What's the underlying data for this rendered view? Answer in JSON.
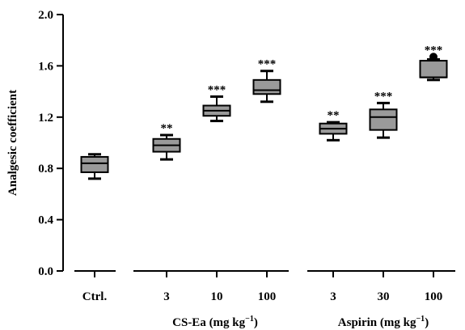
{
  "chart_data": {
    "type": "box",
    "ylabel": "Analgesic coefficient",
    "ylim": [
      0.0,
      2.0
    ],
    "yticks": [
      "0.0",
      "0.4",
      "0.8",
      "1.2",
      "1.6",
      "2.0"
    ],
    "groups": [
      {
        "label_main": "",
        "label_unit": "",
        "label_sup": "",
        "label_close": "",
        "categories": [
          "Ctrl."
        ]
      },
      {
        "label_main": "CS-Ea",
        "label_unit": " (mg kg",
        "label_sup": "−1",
        "label_close": ")",
        "categories": [
          "3",
          "10",
          "100"
        ]
      },
      {
        "label_main": "Aspirin",
        "label_unit": " (mg kg",
        "label_sup": "−1",
        "label_close": ")",
        "categories": [
          "3",
          "30",
          "100"
        ]
      }
    ],
    "boxes": [
      {
        "category": "Ctrl.",
        "min": 0.72,
        "q1": 0.77,
        "median": 0.84,
        "q3": 0.89,
        "max": 0.91,
        "significance": ""
      },
      {
        "category": "3",
        "min": 0.87,
        "q1": 0.93,
        "median": 0.98,
        "q3": 1.03,
        "max": 1.06,
        "significance": "**"
      },
      {
        "category": "10",
        "min": 1.17,
        "q1": 1.21,
        "median": 1.25,
        "q3": 1.29,
        "max": 1.36,
        "significance": "***"
      },
      {
        "category": "100",
        "min": 1.32,
        "q1": 1.38,
        "median": 1.41,
        "q3": 1.49,
        "max": 1.56,
        "significance": "***"
      },
      {
        "category": "3",
        "min": 1.02,
        "q1": 1.07,
        "median": 1.11,
        "q3": 1.15,
        "max": 1.16,
        "significance": "**"
      },
      {
        "category": "30",
        "min": 1.04,
        "q1": 1.1,
        "median": 1.2,
        "q3": 1.26,
        "max": 1.31,
        "significance": "***"
      },
      {
        "category": "100",
        "min": 1.49,
        "q1": 1.51,
        "median": 1.51,
        "q3": 1.64,
        "max": 1.65,
        "outlier": 1.67,
        "significance": "***"
      }
    ],
    "box_color": "#9a9a9a",
    "line_color": "#000000"
  }
}
